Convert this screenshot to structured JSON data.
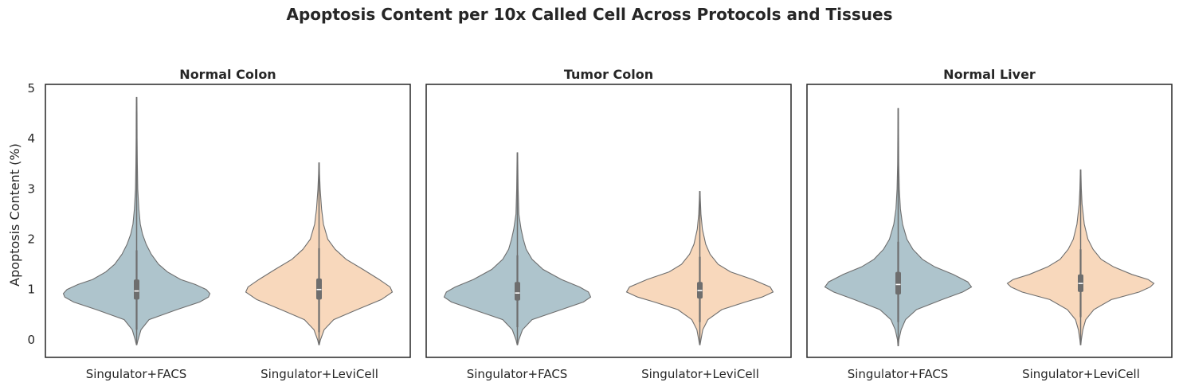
{
  "title": "Apoptosis Content per 10x Called Cell Across Protocols and Tissues",
  "colors": {
    "Singulator+FACS": "#aec4cc",
    "Singulator+LeviCell": "#f8d8bc",
    "outline": "#6e6e6e",
    "box": "#6e6e6e",
    "median": "#ffffff",
    "frame": "#262626"
  },
  "chart_data": [
    {
      "type": "violin",
      "title": "Normal Colon",
      "ylabel": "Apoptosis Content (%)",
      "ylim": [
        -0.35,
        5.08
      ],
      "yticks": [
        "0",
        "1",
        "2",
        "3",
        "4",
        "5"
      ],
      "categories": [
        "Singulator+FACS",
        "Singulator+LeviCell"
      ],
      "series": [
        {
          "category": "Singulator+FACS",
          "min": -0.1,
          "q1": 0.8,
          "median": 0.97,
          "q3": 1.2,
          "whisker_low": 0.2,
          "whisker_high": 1.78,
          "max": 4.82,
          "density": [
            [
              -0.1,
              0.003
            ],
            [
              0,
              0.02
            ],
            [
              0.2,
              0.06
            ],
            [
              0.4,
              0.17
            ],
            [
              0.6,
              0.55
            ],
            [
              0.75,
              0.86
            ],
            [
              0.85,
              0.98
            ],
            [
              0.92,
              1.0
            ],
            [
              1.0,
              0.95
            ],
            [
              1.1,
              0.8
            ],
            [
              1.2,
              0.6
            ],
            [
              1.35,
              0.42
            ],
            [
              1.5,
              0.3
            ],
            [
              1.7,
              0.2
            ],
            [
              1.9,
              0.13
            ],
            [
              2.1,
              0.08
            ],
            [
              2.3,
              0.05
            ],
            [
              2.6,
              0.03
            ],
            [
              3.0,
              0.015
            ],
            [
              3.5,
              0.01
            ],
            [
              4.0,
              0.007
            ],
            [
              4.5,
              0.005
            ],
            [
              4.82,
              0.003
            ]
          ]
        },
        {
          "category": "Singulator+LeviCell",
          "min": -0.1,
          "q1": 0.8,
          "median": 1.0,
          "q3": 1.22,
          "whisker_low": 0.15,
          "whisker_high": 1.82,
          "max": 3.52,
          "density": [
            [
              -0.1,
              0.003
            ],
            [
              0,
              0.02
            ],
            [
              0.2,
              0.07
            ],
            [
              0.4,
              0.2
            ],
            [
              0.6,
              0.52
            ],
            [
              0.8,
              0.85
            ],
            [
              0.95,
              1.0
            ],
            [
              1.05,
              0.97
            ],
            [
              1.2,
              0.82
            ],
            [
              1.4,
              0.6
            ],
            [
              1.6,
              0.37
            ],
            [
              1.8,
              0.22
            ],
            [
              2.0,
              0.12
            ],
            [
              2.3,
              0.06
            ],
            [
              2.6,
              0.035
            ],
            [
              3.0,
              0.015
            ],
            [
              3.3,
              0.007
            ],
            [
              3.52,
              0.003
            ]
          ]
        }
      ]
    },
    {
      "type": "violin",
      "title": "Tumor Colon",
      "ylim": [
        -0.35,
        5.08
      ],
      "categories": [
        "Singulator+FACS",
        "Singulator+LeviCell"
      ],
      "series": [
        {
          "category": "Singulator+FACS",
          "min": -0.1,
          "q1": 0.78,
          "median": 0.93,
          "q3": 1.15,
          "whisker_low": 0.25,
          "whisker_high": 1.68,
          "max": 3.72,
          "density": [
            [
              -0.1,
              0.003
            ],
            [
              0,
              0.02
            ],
            [
              0.2,
              0.07
            ],
            [
              0.4,
              0.2
            ],
            [
              0.6,
              0.6
            ],
            [
              0.75,
              0.9
            ],
            [
              0.85,
              1.0
            ],
            [
              0.95,
              0.97
            ],
            [
              1.05,
              0.85
            ],
            [
              1.2,
              0.6
            ],
            [
              1.4,
              0.35
            ],
            [
              1.6,
              0.2
            ],
            [
              1.8,
              0.12
            ],
            [
              2.0,
              0.08
            ],
            [
              2.2,
              0.05
            ],
            [
              2.5,
              0.02
            ],
            [
              3.0,
              0.01
            ],
            [
              3.5,
              0.005
            ],
            [
              3.72,
              0.003
            ]
          ]
        },
        {
          "category": "Singulator+LeviCell",
          "min": -0.1,
          "q1": 0.82,
          "median": 0.98,
          "q3": 1.15,
          "whisker_low": 0.35,
          "whisker_high": 1.65,
          "max": 2.95,
          "density": [
            [
              -0.1,
              0.003
            ],
            [
              0,
              0.015
            ],
            [
              0.2,
              0.04
            ],
            [
              0.4,
              0.11
            ],
            [
              0.6,
              0.3
            ],
            [
              0.75,
              0.62
            ],
            [
              0.85,
              0.85
            ],
            [
              0.95,
              1.0
            ],
            [
              1.05,
              0.96
            ],
            [
              1.2,
              0.72
            ],
            [
              1.35,
              0.42
            ],
            [
              1.5,
              0.25
            ],
            [
              1.7,
              0.14
            ],
            [
              1.9,
              0.08
            ],
            [
              2.2,
              0.035
            ],
            [
              2.5,
              0.015
            ],
            [
              2.8,
              0.007
            ],
            [
              2.95,
              0.003
            ]
          ]
        }
      ]
    },
    {
      "type": "violin",
      "title": "Normal Liver",
      "ylim": [
        -0.35,
        5.08
      ],
      "categories": [
        "Singulator+FACS",
        "Singulator+LeviCell"
      ],
      "series": [
        {
          "category": "Singulator+FACS",
          "min": -0.12,
          "q1": 0.9,
          "median": 1.1,
          "q3": 1.35,
          "whisker_low": 0.35,
          "whisker_high": 1.95,
          "max": 4.6,
          "density": [
            [
              -0.12,
              0.003
            ],
            [
              0,
              0.01
            ],
            [
              0.2,
              0.04
            ],
            [
              0.4,
              0.1
            ],
            [
              0.6,
              0.25
            ],
            [
              0.8,
              0.6
            ],
            [
              0.95,
              0.88
            ],
            [
              1.05,
              1.0
            ],
            [
              1.15,
              0.95
            ],
            [
              1.3,
              0.75
            ],
            [
              1.45,
              0.5
            ],
            [
              1.6,
              0.33
            ],
            [
              1.8,
              0.2
            ],
            [
              2.0,
              0.12
            ],
            [
              2.3,
              0.06
            ],
            [
              2.6,
              0.03
            ],
            [
              3.0,
              0.015
            ],
            [
              3.5,
              0.008
            ],
            [
              4.0,
              0.005
            ],
            [
              4.6,
              0.003
            ]
          ]
        },
        {
          "category": "Singulator+LeviCell",
          "min": -0.1,
          "q1": 0.95,
          "median": 1.12,
          "q3": 1.3,
          "whisker_low": 0.45,
          "whisker_high": 1.8,
          "max": 3.38,
          "density": [
            [
              -0.1,
              0.003
            ],
            [
              0,
              0.01
            ],
            [
              0.2,
              0.03
            ],
            [
              0.4,
              0.07
            ],
            [
              0.6,
              0.18
            ],
            [
              0.8,
              0.42
            ],
            [
              0.95,
              0.8
            ],
            [
              1.05,
              0.95
            ],
            [
              1.12,
              1.0
            ],
            [
              1.2,
              0.92
            ],
            [
              1.3,
              0.7
            ],
            [
              1.45,
              0.45
            ],
            [
              1.6,
              0.28
            ],
            [
              1.8,
              0.17
            ],
            [
              2.0,
              0.1
            ],
            [
              2.3,
              0.05
            ],
            [
              2.7,
              0.02
            ],
            [
              3.0,
              0.01
            ],
            [
              3.38,
              0.003
            ]
          ]
        }
      ]
    }
  ]
}
